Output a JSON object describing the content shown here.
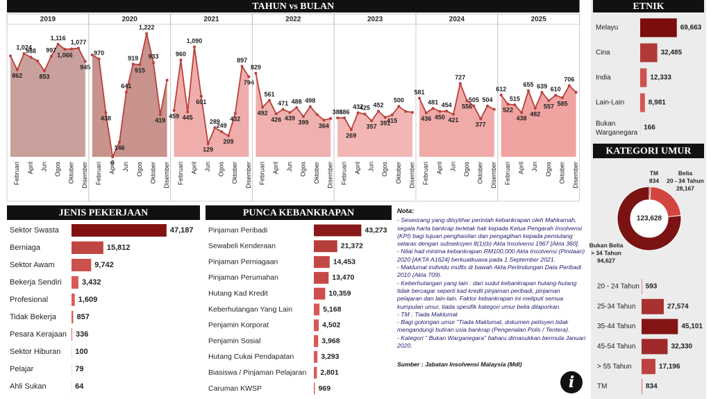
{
  "chart_data": [
    {
      "type": "area",
      "title": "TAHUN vs BULAN",
      "ylim": [
        0,
        1300
      ],
      "panels": [
        {
          "title": "2019",
          "color": "#c9a09b",
          "categories": [
            null,
            "Februari",
            null,
            "April",
            null,
            "Jun",
            null,
            "Ogos",
            null,
            "Oktober",
            null,
            "Disember"
          ],
          "values": [
            1000,
            862,
            1024,
            988,
            950,
            853,
            997,
            1116,
            1066,
            1070,
            1077,
            945
          ],
          "value_labels": [
            null,
            "862",
            "1,024",
            "988",
            null,
            "853",
            "997",
            "1,116",
            "1,066",
            null,
            "1,077",
            "945"
          ]
        },
        {
          "title": "2020",
          "color": "#c8928d",
          "categories": [
            null,
            "Februari",
            null,
            "April",
            null,
            "Jun",
            null,
            "Ogos",
            null,
            "Oktober",
            null,
            "Disember"
          ],
          "values": [
            1010,
            970,
            438,
            0,
            146,
            641,
            919,
            915,
            1222,
            933,
            419,
            760
          ],
          "value_labels": [
            null,
            "970",
            "438",
            "0",
            "146",
            "641",
            "919",
            "915",
            "1,222",
            "933",
            "419",
            null
          ]
        },
        {
          "title": "2021",
          "color": "#efadab",
          "categories": [
            null,
            "Februari",
            null,
            "April",
            null,
            "Jun",
            null,
            "Ogos",
            null,
            "Oktober",
            null,
            "Disember"
          ],
          "values": [
            459,
            960,
            445,
            1090,
            601,
            129,
            289,
            249,
            209,
            432,
            897,
            794
          ],
          "value_labels": [
            "459",
            "960",
            "445",
            "1,090",
            "601",
            "129",
            "289",
            "249",
            "209",
            "432",
            "897",
            "794"
          ]
        },
        {
          "title": "2022",
          "color": "#efb1af",
          "categories": [
            null,
            "Februari",
            null,
            "April",
            null,
            "Jun",
            null,
            "Ogos",
            null,
            "Oktober",
            null,
            "Disember"
          ],
          "values": [
            829,
            492,
            561,
            426,
            471,
            439,
            488,
            399,
            498,
            420,
            364,
            380
          ],
          "value_labels": [
            "829",
            "492",
            "561",
            "426",
            "471",
            "439",
            "488",
            "399",
            "498",
            null,
            "364",
            null
          ]
        },
        {
          "title": "2023",
          "color": "#f2b6b4",
          "categories": [
            null,
            "Februari",
            null,
            "April",
            null,
            "Jun",
            null,
            "Ogos",
            null,
            "Oktober",
            null,
            "Disember"
          ],
          "values": [
            386,
            386,
            269,
            437,
            425,
            357,
            452,
            391,
            415,
            500,
            450,
            440
          ],
          "value_labels": [
            "386",
            "386",
            "269",
            "437",
            "425",
            "357",
            "452",
            "391",
            "415",
            "500",
            null,
            null
          ]
        },
        {
          "title": "2024",
          "color": "#f0aaa8",
          "categories": [
            null,
            "Februari",
            null,
            "April",
            null,
            "Jun",
            null,
            "Ogos",
            null,
            "Oktober",
            null,
            "Disember"
          ],
          "values": [
            581,
            436,
            481,
            450,
            454,
            421,
            727,
            556,
            505,
            377,
            504,
            470
          ],
          "value_labels": [
            "581",
            "436",
            "481",
            "450",
            "454",
            "421",
            "727",
            "556",
            "505",
            "377",
            "504",
            null
          ]
        },
        {
          "title": "2025",
          "color": "#f0a3a1",
          "categories": [
            null,
            "Februari",
            null,
            "April",
            null,
            "Jun",
            null,
            "Ogos",
            null,
            "Oktober",
            null,
            "Disember"
          ],
          "values": [
            612,
            522,
            515,
            438,
            655,
            482,
            639,
            557,
            610,
            585,
            706,
            640
          ],
          "value_labels": [
            "612",
            "522",
            "515",
            "438",
            "655",
            "482",
            "639",
            "557",
            "610",
            "585",
            "706",
            null
          ]
        }
      ]
    },
    {
      "type": "bar",
      "title": "ETNIK",
      "xlim": [
        0,
        70000
      ],
      "color_range": [
        "#e0605c",
        "#7b0d0d"
      ],
      "categories": [
        "Melayu",
        "Cina",
        "India",
        "Lain-Lain",
        "Bukan Warganegara"
      ],
      "values": [
        69663,
        32485,
        12333,
        8981,
        166
      ],
      "value_labels": [
        "69,663",
        "32,485",
        "12,333",
        "8,981",
        "166"
      ]
    },
    {
      "type": "donut",
      "title": "KATEGORI UMUR",
      "total": 123628,
      "total_label": "123,628",
      "categories": [
        [
          "TM"
        ],
        [
          "Belia",
          "20 - 34 Tahun"
        ],
        [
          "Bukan Belia",
          "> 34 Tahun"
        ]
      ],
      "values": [
        834,
        28167,
        94627
      ],
      "value_labels": [
        "834",
        "28,167",
        "94,627"
      ],
      "colors": [
        "#5a0a0a",
        "#d2463f",
        "#7b1313"
      ]
    },
    {
      "type": "bar",
      "xlim": [
        0,
        50000
      ],
      "color_range": [
        "#e0605c",
        "#7b0d0d"
      ],
      "categories": [
        "20 - 24 Tahun",
        "25-34 Tahun",
        "35-44 Tahun",
        "45-54 Tahun",
        "> 55 Tahun",
        "TM"
      ],
      "values": [
        593,
        27574,
        45101,
        32330,
        17196,
        834
      ],
      "value_labels": [
        "593",
        "27,574",
        "45,101",
        "32,330",
        "17,196",
        "834"
      ]
    },
    {
      "type": "bar",
      "title": "JENIS PEKERJAAN",
      "xlim": [
        0,
        50000
      ],
      "color_range": [
        "#e0605c",
        "#7b0d0d"
      ],
      "categories": [
        "Sektor Swasta",
        "Berniaga",
        "Sektor Awam",
        "Bekerja Sendiri",
        "Profesional",
        "Tidak Bekerja",
        "Pesara Kerajaan",
        "Sektor Hiburan",
        "Pelajar",
        "Ahli Sukan"
      ],
      "values": [
        47187,
        15812,
        9742,
        3432,
        1609,
        857,
        336,
        100,
        79,
        64
      ],
      "value_labels": [
        "47,187",
        "15,812",
        "9,742",
        "3,432",
        "1,609",
        "857",
        "336",
        "100",
        "79",
        "64"
      ]
    },
    {
      "type": "bar",
      "title": "PUNCA KEBANKRAPAN",
      "xlim": [
        0,
        50000
      ],
      "color_range": [
        "#e0605c",
        "#7b0d0d"
      ],
      "categories": [
        "Pinjaman Peribadi",
        "Sewabeli Kenderaan",
        "Pinjaman Perniagaan",
        "Pinjaman Perumahan",
        "Hutang Kad Kredit",
        "Keberhutangan Yang Lain",
        "Penjamin Korporat",
        "Penjamin Sosial",
        "Hutang Cukai Pendapatan",
        "Biasiswa / Pinjaman Pelajaran",
        "Caruman KWSP"
      ],
      "values": [
        43273,
        21372,
        14453,
        13470,
        10359,
        5168,
        4502,
        3968,
        3293,
        2801,
        969
      ],
      "value_labels": [
        "43,273",
        "21,372",
        "14,453",
        "13,470",
        "10,359",
        "5,168",
        "4,502",
        "3,968",
        "3,293",
        "2,801",
        "969"
      ]
    }
  ],
  "notes": {
    "title": "Nota:",
    "items": [
      "- Seseorang yang diisytihar perintah kebankrapan oleh Mahkamah, segala harta bankrap terletak hak kepada Ketua Pengarah Insolvensi (KPI) bagi tujuan penghasilan dan pengagihan kepada pemiutang selaras dengan subseksyen 8(1)(b) Akta Insolvensi 1967 [Akta 360].",
      "- Nilai had minima kebankrapan RM100,000 Akta Insolvensi (Pindaan) 2020 [AKTA A1624] berkuatkuasa pada 1 September 2021.",
      "- Maklumat individu muflis di bawah Akta Perlindungan Data Peribadi 2010 (Akta 709).",
      "- Keberhutangan yang lain : dari sudut kebankrapan hutang-hutang tidak bercagar seperti kad kredit pinjaman peribadi, pinjaman pelajaran dan lain-lain. Faktor kebankrapan ini meliputi semua kumpulan umur, tiada spesifik kategori umur belia dilaporkan.",
      "- TM : Tiada Maklumat",
      "- Bagi golongan umur \"Tiada Maklumat, dokumen petisyen tidak mengandungi butiran usia bankrap (Pengenalan Polis / Tentera).",
      "- Kategori \" Bukan Warganegara\" baharu dimasukkan bermula Januari 2020."
    ],
    "source": "Sumber : Jabatan Insolvensi Malaysia (MdI)",
    "info": "i"
  }
}
